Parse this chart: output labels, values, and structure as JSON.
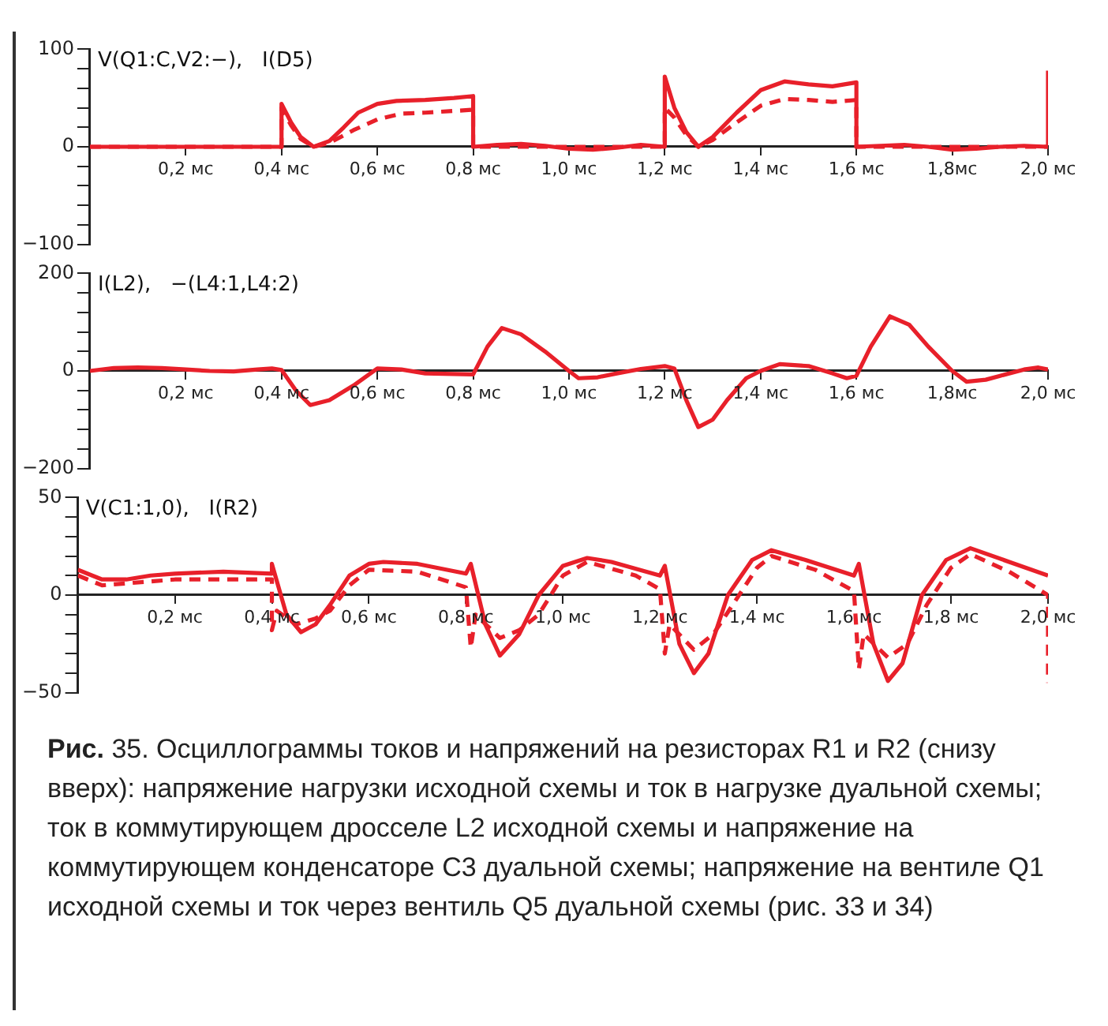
{
  "chart_data": [
    {
      "type": "line",
      "title": "V(Q1:C,V2:−),   I(D5)",
      "xlim": [
        0,
        2.0
      ],
      "ylim": [
        -100,
        100
      ],
      "grid": false,
      "marker": "none",
      "xticks": [
        {
          "value": 0.2,
          "label": "0,2 мс"
        },
        {
          "value": 0.4,
          "label": "0,4 мс"
        },
        {
          "value": 0.6,
          "label": "0,6 мс"
        },
        {
          "value": 0.8,
          "label": "0,8 мс"
        },
        {
          "value": 1.0,
          "label": "1,0 мс"
        },
        {
          "value": 1.2,
          "label": "1,2 мс"
        },
        {
          "value": 1.4,
          "label": "1,4 мс"
        },
        {
          "value": 1.6,
          "label": "1,6 мс"
        },
        {
          "value": 1.8,
          "label": "1,8мс"
        },
        {
          "value": 2.0,
          "label": "2,0 мс"
        }
      ],
      "yticks": [
        100,
        {
          "value": 80,
          "label": null
        },
        {
          "value": 60,
          "label": null
        },
        {
          "value": 40,
          "label": null
        },
        {
          "value": 20,
          "label": null
        },
        0,
        {
          "value": -20,
          "label": null
        },
        {
          "value": -40,
          "label": null
        },
        {
          "value": -60,
          "label": null
        },
        {
          "value": -80,
          "label": null
        },
        {
          "value": -100,
          "label": "−100"
        }
      ],
      "series": [
        {
          "color": "#e8202a",
          "line_style": "solid",
          "x": [
            0,
            0.4,
            0.4,
            0.42,
            0.44,
            0.467,
            0.5,
            0.53,
            0.56,
            0.6,
            0.64,
            0.7,
            0.76,
            0.8,
            0.8,
            0.85,
            0.9,
            0.95,
            1.0,
            1.05,
            1.1,
            1.15,
            1.2,
            1.2,
            1.22,
            1.245,
            1.27,
            1.3,
            1.35,
            1.4,
            1.45,
            1.5,
            1.55,
            1.6,
            1.6,
            1.65,
            1.7,
            1.75,
            1.8,
            1.85,
            1.9,
            1.95,
            2.0,
            2.0
          ],
          "values": [
            0,
            0,
            44,
            25,
            10,
            0,
            6,
            20,
            35,
            44,
            47,
            48,
            50,
            52,
            0,
            2,
            3,
            1,
            -2,
            -3,
            -1,
            2,
            0,
            72,
            40,
            15,
            0,
            10,
            35,
            58,
            67,
            64,
            62,
            66,
            0,
            1,
            2,
            0,
            -3,
            -2,
            0,
            1,
            0,
            78
          ]
        },
        {
          "color": "#e8202a",
          "line_style": "dashed",
          "x": [
            0,
            0.4,
            0.4,
            0.42,
            0.44,
            0.467,
            0.5,
            0.55,
            0.6,
            0.65,
            0.7,
            0.8,
            0.8,
            1.2,
            1.2,
            1.22,
            1.245,
            1.27,
            1.3,
            1.35,
            1.4,
            1.45,
            1.5,
            1.55,
            1.6,
            1.6,
            2.0
          ],
          "values": [
            0,
            0,
            40,
            22,
            8,
            0,
            4,
            17,
            28,
            34,
            35,
            38,
            0,
            0,
            40,
            30,
            12,
            0,
            7,
            25,
            42,
            49,
            48,
            46,
            48,
            0,
            0
          ]
        }
      ]
    },
    {
      "type": "line",
      "title": "I(L2),   −(L4:1,L4:2)",
      "xlim": [
        0,
        2.0
      ],
      "ylim": [
        -200,
        200
      ],
      "grid": false,
      "marker": "none",
      "xticks": [
        {
          "value": 0.2,
          "label": "0,2 мс"
        },
        {
          "value": 0.4,
          "label": "0,4 мс"
        },
        {
          "value": 0.6,
          "label": "0,6 мс"
        },
        {
          "value": 0.8,
          "label": "0,8 мс"
        },
        {
          "value": 1.0,
          "label": "1,0 мс"
        },
        {
          "value": 1.2,
          "label": "1,2 мс"
        },
        {
          "value": 1.4,
          "label": "1,4 мс"
        },
        {
          "value": 1.6,
          "label": "1,6 мс"
        },
        {
          "value": 1.8,
          "label": "1,8мс"
        },
        {
          "value": 2.0,
          "label": "2,0 мс"
        }
      ],
      "yticks": [
        200,
        {
          "value": 160,
          "label": null
        },
        {
          "value": 120,
          "label": null
        },
        {
          "value": 80,
          "label": null
        },
        {
          "value": 40,
          "label": null
        },
        0,
        {
          "value": -40,
          "label": null
        },
        {
          "value": -80,
          "label": null
        },
        {
          "value": -120,
          "label": null
        },
        {
          "value": -160,
          "label": null
        },
        {
          "value": -200,
          "label": "−200"
        }
      ],
      "series": [
        {
          "color": "#e8202a",
          "line_style": "solid",
          "x": [
            0,
            0.05,
            0.1,
            0.15,
            0.2,
            0.25,
            0.3,
            0.35,
            0.38,
            0.4,
            0.43,
            0.46,
            0.5,
            0.55,
            0.6,
            0.65,
            0.7,
            0.8,
            0.83,
            0.86,
            0.9,
            0.95,
            1.0,
            1.02,
            1.06,
            1.1,
            1.15,
            1.2,
            1.22,
            1.245,
            1.27,
            1.3,
            1.33,
            1.37,
            1.4,
            1.44,
            1.5,
            1.55,
            1.58,
            1.6,
            1.63,
            1.67,
            1.71,
            1.75,
            1.8,
            1.83,
            1.87,
            1.9,
            1.95,
            1.98,
            2.0
          ],
          "values": [
            0,
            6,
            7,
            6,
            3,
            0,
            -1,
            3,
            5,
            2,
            -40,
            -70,
            -60,
            -30,
            5,
            3,
            -5,
            -7,
            50,
            88,
            75,
            40,
            0,
            -15,
            -13,
            -5,
            4,
            10,
            5,
            -60,
            -115,
            -100,
            -60,
            -15,
            0,
            14,
            10,
            -5,
            -15,
            -10,
            50,
            112,
            95,
            50,
            0,
            -22,
            -18,
            -10,
            3,
            7,
            3
          ]
        }
      ]
    },
    {
      "type": "line",
      "title": "V(C1:1,0),   I(R2)",
      "xlim": [
        0,
        2.0
      ],
      "ylim": [
        -50,
        50
      ],
      "grid": false,
      "marker": "none",
      "xticks": [
        {
          "value": 0.2,
          "label": "0,2 мс"
        },
        {
          "value": 0.4,
          "label": "0,4 мс"
        },
        {
          "value": 0.6,
          "label": "0,6 мс"
        },
        {
          "value": 0.8,
          "label": "0,8 мс"
        },
        {
          "value": 1.0,
          "label": "1,0 мс"
        },
        {
          "value": 1.2,
          "label": "1,2 мс"
        },
        {
          "value": 1.4,
          "label": "1,4 мс"
        },
        {
          "value": 1.6,
          "label": "1,6 мс"
        },
        {
          "value": 1.8,
          "label": "1,8 мс"
        },
        {
          "value": 2.0,
          "label": "2,0 мс"
        }
      ],
      "yticks": [
        50,
        {
          "value": 40,
          "label": null
        },
        {
          "value": 30,
          "label": null
        },
        {
          "value": 20,
          "label": null
        },
        {
          "value": 10,
          "label": null
        },
        0,
        {
          "value": -10,
          "label": null
        },
        {
          "value": -20,
          "label": null
        },
        {
          "value": -30,
          "label": null
        },
        {
          "value": -40,
          "label": null
        },
        {
          "value": -50,
          "label": "−50"
        }
      ],
      "series": [
        {
          "color": "#e8202a",
          "line_style": "solid",
          "x": [
            0,
            0.05,
            0.1,
            0.15,
            0.2,
            0.3,
            0.4,
            0.4,
            0.43,
            0.46,
            0.49,
            0.52,
            0.56,
            0.6,
            0.63,
            0.7,
            0.8,
            0.81,
            0.84,
            0.87,
            0.91,
            0.95,
            1.0,
            1.05,
            1.1,
            1.2,
            1.21,
            1.24,
            1.27,
            1.3,
            1.34,
            1.39,
            1.43,
            1.5,
            1.6,
            1.61,
            1.64,
            1.67,
            1.7,
            1.74,
            1.79,
            1.84,
            1.92,
            2.0
          ],
          "values": [
            13,
            8,
            8,
            10,
            11,
            12,
            11,
            16,
            -10,
            -19,
            -15,
            -5,
            10,
            16,
            17,
            16,
            11,
            16,
            -15,
            -31,
            -20,
            0,
            15,
            19,
            17,
            10,
            15,
            -25,
            -40,
            -30,
            0,
            18,
            23,
            18,
            10,
            16,
            -25,
            -44,
            -35,
            0,
            18,
            24,
            17,
            10
          ]
        },
        {
          "color": "#e8202a",
          "line_style": "dashed",
          "x": [
            0,
            0.05,
            0.1,
            0.2,
            0.3,
            0.4,
            0.4,
            0.41,
            0.45,
            0.49,
            0.52,
            0.56,
            0.6,
            0.7,
            0.8,
            0.81,
            0.82,
            0.87,
            0.91,
            0.95,
            1.0,
            1.05,
            1.15,
            1.2,
            1.21,
            1.22,
            1.27,
            1.31,
            1.35,
            1.4,
            1.43,
            1.52,
            1.6,
            1.61,
            1.62,
            1.67,
            1.71,
            1.75,
            1.8,
            1.84,
            1.92,
            2.0,
            2.0
          ],
          "values": [
            10,
            5,
            6,
            8,
            8,
            8,
            -18,
            -8,
            -15,
            -12,
            -8,
            5,
            13,
            12,
            4,
            -27,
            -10,
            -22,
            -18,
            -10,
            10,
            17,
            10,
            3,
            -30,
            -15,
            -28,
            -20,
            -5,
            14,
            20,
            13,
            2,
            -38,
            -20,
            -32,
            -25,
            -5,
            14,
            21,
            12,
            0,
            -45
          ]
        }
      ],
      "annotations": [
        "Рис. 35. Осциллограммы токов и напряжений на резисторах R1 и R2 (снизу вверх): напряжение нагрузки исходной схемы и ток в нагрузке дуальной схемы; ток в коммутирующем дросселе L2 исходной схемы и напряжение на коммутирующем конденсаторе C3 дуальной схемы; напряжение на вентиле Q1 исходной схемы и ток через вентиль Q5 дуальной схемы (рис. 33 и 34)"
      ]
    }
  ]
}
